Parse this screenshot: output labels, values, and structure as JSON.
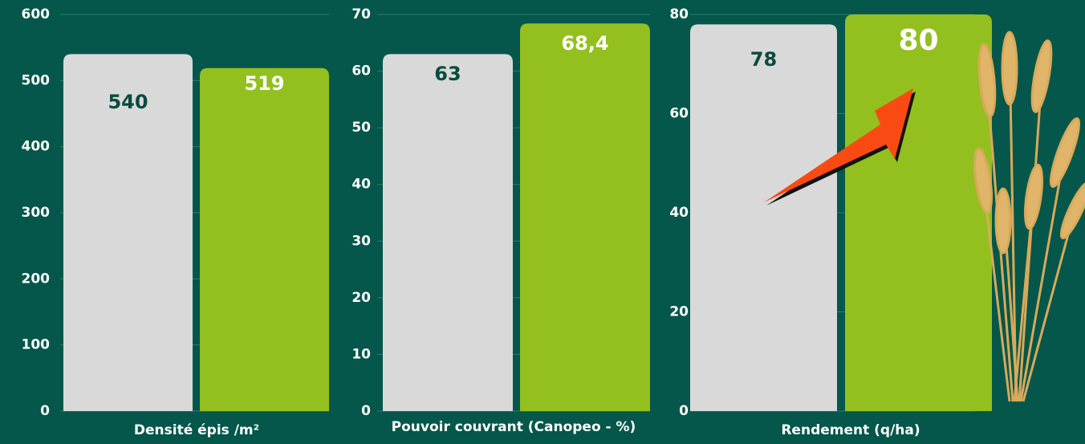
{
  "chart_data": [
    {
      "type": "bar",
      "x_label": "Densité épis /m²",
      "values": [
        540,
        519
      ],
      "colors": [
        "#d9d9d9",
        "#93c01f"
      ],
      "ylim": [
        0,
        600
      ],
      "yticks": [
        0,
        100,
        200,
        300,
        400,
        500,
        600
      ],
      "grid": true
    },
    {
      "type": "bar",
      "x_label": "Pouvoir couvrant (Canopeo - %)",
      "values": [
        63,
        68.4
      ],
      "value_labels": [
        "63",
        "68,4"
      ],
      "colors": [
        "#d9d9d9",
        "#93c01f"
      ],
      "ylim": [
        0,
        70
      ],
      "yticks": [
        0,
        10,
        20,
        30,
        40,
        50,
        60,
        70
      ],
      "grid": true
    },
    {
      "type": "bar",
      "x_label": "Rendement (q/ha)",
      "values": [
        78,
        80
      ],
      "colors": [
        "#d9d9d9",
        "#93c01f"
      ],
      "ylim": [
        0,
        80
      ],
      "yticks": [
        0,
        20,
        40,
        60,
        80
      ],
      "grid": true
    }
  ]
}
